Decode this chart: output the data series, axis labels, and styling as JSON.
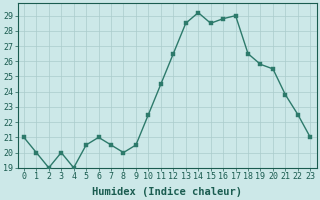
{
  "x": [
    0,
    1,
    2,
    3,
    4,
    5,
    6,
    7,
    8,
    9,
    10,
    11,
    12,
    13,
    14,
    15,
    16,
    17,
    18,
    19,
    20,
    21,
    22,
    23
  ],
  "y": [
    21,
    20,
    19,
    20,
    19,
    20.5,
    21,
    20.5,
    20,
    20.5,
    22.5,
    24.5,
    26.5,
    28.5,
    29.2,
    28.5,
    28.8,
    29,
    26.5,
    25.8,
    25.5,
    23.8,
    22.5,
    21
  ],
  "line_color": "#2d7a6b",
  "marker_color": "#2d7a6b",
  "bg_color": "#cce8e8",
  "grid_major_color": "#aacccc",
  "grid_minor_color": "#bbdddd",
  "xlabel": "Humidex (Indice chaleur)",
  "xlim": [
    -0.5,
    23.5
  ],
  "ylim": [
    19,
    29.8
  ],
  "yticks": [
    19,
    20,
    21,
    22,
    23,
    24,
    25,
    26,
    27,
    28,
    29
  ],
  "xticks": [
    0,
    1,
    2,
    3,
    4,
    5,
    6,
    7,
    8,
    9,
    10,
    11,
    12,
    13,
    14,
    15,
    16,
    17,
    18,
    19,
    20,
    21,
    22,
    23
  ],
  "tick_color": "#1a5c50",
  "xlabel_fontsize": 7.5,
  "tick_fontsize": 6,
  "marker_size": 2.5,
  "line_width": 1.0
}
